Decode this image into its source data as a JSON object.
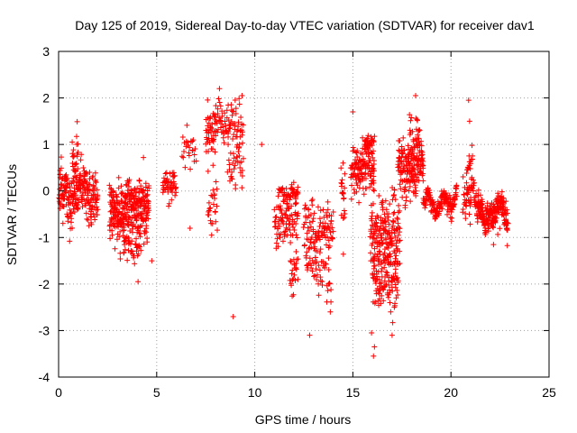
{
  "chart_data": {
    "type": "scatter",
    "title": "Day 125 of 2019, Sidereal Day-to-day VTEC variation (SDTVAR) for receiver dav1",
    "xlabel": "GPS time / hours",
    "ylabel": "SDTVAR / TECUs",
    "xlim": [
      0,
      25
    ],
    "ylim": [
      -4,
      3
    ],
    "xticks": [
      0,
      5,
      10,
      15,
      20,
      25
    ],
    "yticks": [
      -4,
      -3,
      -2,
      -1,
      0,
      1,
      2,
      3
    ],
    "grid": true,
    "legend": "none",
    "marker": "+",
    "color": "#ff0000",
    "clusters": [
      {
        "x": [
          0.0,
          2.0
        ],
        "y_center": 0.0,
        "spread": 0.45,
        "count": 240
      },
      {
        "x": [
          0.7,
          1.0
        ],
        "y_center": 0.8,
        "spread": 0.4,
        "count": 25
      },
      {
        "x": [
          2.6,
          4.6
        ],
        "y_center": -0.4,
        "spread": 0.5,
        "count": 320
      },
      {
        "x": [
          3.3,
          4.2
        ],
        "y_center": -1.2,
        "spread": 0.3,
        "count": 40
      },
      {
        "x": [
          5.3,
          6.0
        ],
        "y_center": 0.05,
        "spread": 0.25,
        "count": 50
      },
      {
        "x": [
          6.3,
          7.0
        ],
        "y_center": 0.8,
        "spread": 0.35,
        "count": 25
      },
      {
        "x": [
          7.5,
          8.0
        ],
        "y_center": 1.3,
        "spread": 0.5,
        "count": 45
      },
      {
        "x": [
          7.6,
          8.1
        ],
        "y_center": -0.4,
        "spread": 0.4,
        "count": 25
      },
      {
        "x": [
          8.0,
          9.4
        ],
        "y_center": 1.5,
        "spread": 0.4,
        "count": 80
      },
      {
        "x": [
          8.6,
          9.4
        ],
        "y_center": 0.6,
        "spread": 0.45,
        "count": 35
      },
      {
        "x": [
          11.0,
          12.2
        ],
        "y_center": -0.6,
        "spread": 0.45,
        "count": 90
      },
      {
        "x": [
          11.2,
          12.2
        ],
        "y_center": 0.0,
        "spread": 0.1,
        "count": 40
      },
      {
        "x": [
          11.8,
          12.2
        ],
        "y_center": -1.8,
        "spread": 0.45,
        "count": 25
      },
      {
        "x": [
          12.5,
          14.0
        ],
        "y_center": -0.8,
        "spread": 0.5,
        "count": 110
      },
      {
        "x": [
          12.6,
          13.9
        ],
        "y_center": -1.7,
        "spread": 0.35,
        "count": 45
      },
      {
        "x": [
          14.4,
          14.6
        ],
        "y_center": -0.1,
        "spread": 0.8,
        "count": 20
      },
      {
        "x": [
          14.9,
          16.1
        ],
        "y_center": 0.4,
        "spread": 0.4,
        "count": 140
      },
      {
        "x": [
          15.6,
          16.1
        ],
        "y_center": 1.0,
        "spread": 0.15,
        "count": 25
      },
      {
        "x": [
          15.9,
          17.4
        ],
        "y_center": -1.0,
        "spread": 0.7,
        "count": 200
      },
      {
        "x": [
          16.0,
          17.3
        ],
        "y_center": -2.0,
        "spread": 0.45,
        "count": 90
      },
      {
        "x": [
          17.3,
          18.6
        ],
        "y_center": 0.5,
        "spread": 0.45,
        "count": 170
      },
      {
        "x": [
          17.8,
          18.4
        ],
        "y_center": 1.1,
        "spread": 0.5,
        "count": 35
      },
      {
        "x": [
          18.6,
          20.3
        ],
        "y_center": -0.25,
        "spread": 0.15,
        "count": 160
      },
      {
        "x": [
          20.6,
          21.3
        ],
        "y_center": -0.1,
        "spread": 0.3,
        "count": 55
      },
      {
        "x": [
          20.8,
          21.1
        ],
        "y_center": 0.5,
        "spread": 0.25,
        "count": 15
      },
      {
        "x": [
          21.3,
          22.9
        ],
        "y_center": -0.45,
        "spread": 0.25,
        "count": 230
      }
    ],
    "outliers": [
      {
        "x": 10.35,
        "y": 1.0
      },
      {
        "x": 8.9,
        "y": -2.7
      },
      {
        "x": 12.8,
        "y": -3.1
      },
      {
        "x": 20.9,
        "y": 1.95
      },
      {
        "x": 20.95,
        "y": 1.5
      },
      {
        "x": 18.2,
        "y": 2.05
      },
      {
        "x": 15.0,
        "y": 1.7
      },
      {
        "x": 8.2,
        "y": 2.2
      },
      {
        "x": 9.35,
        "y": 2.05
      },
      {
        "x": 16.05,
        "y": -3.55
      },
      {
        "x": 16.1,
        "y": -3.35
      },
      {
        "x": 4.05,
        "y": -1.95
      },
      {
        "x": 13.85,
        "y": -2.6
      },
      {
        "x": 15.95,
        "y": -3.05
      },
      {
        "x": 17.0,
        "y": -3.1
      },
      {
        "x": 6.7,
        "y": -0.8
      },
      {
        "x": 4.75,
        "y": -1.5
      }
    ]
  }
}
